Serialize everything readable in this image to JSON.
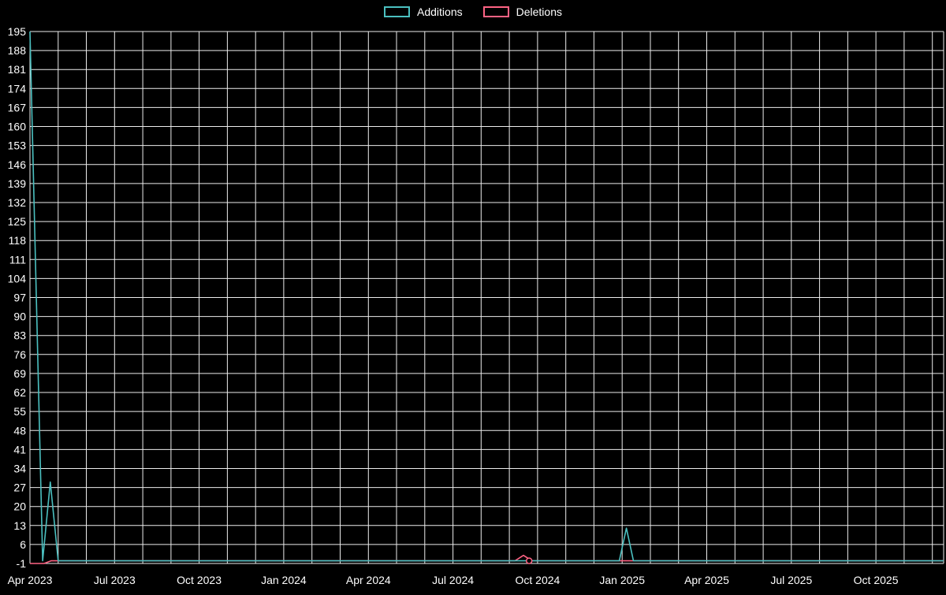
{
  "colors": {
    "background": "#000000",
    "grid": "#ededed",
    "text": "#ffffff"
  },
  "chart_data": {
    "type": "line",
    "title": "",
    "legend_position": "top-center",
    "grid": true,
    "x_axis": {
      "tick_labels": [
        "Apr 2023",
        "Jul 2023",
        "Oct 2023",
        "Jan 2024",
        "Apr 2024",
        "Jul 2024",
        "Oct 2024",
        "Jan 2025",
        "Apr 2025",
        "Jul 2025",
        "Oct 2025"
      ],
      "tick_month_offsets": [
        0,
        3,
        6,
        9,
        12,
        15,
        18,
        21,
        24,
        27,
        30
      ],
      "months_span": 32.4,
      "grid_interval_months": 1
    },
    "y_axis": {
      "min": -1,
      "max": 195,
      "step": 7,
      "tick_labels": [
        195,
        188,
        181,
        174,
        167,
        160,
        153,
        146,
        139,
        132,
        125,
        118,
        111,
        104,
        97,
        90,
        83,
        76,
        69,
        62,
        55,
        48,
        41,
        34,
        27,
        20,
        13,
        6,
        -1
      ]
    },
    "series": [
      {
        "name": "Additions",
        "color": "#4bc0c0",
        "points": [
          [
            0,
            195
          ],
          [
            0.45,
            0
          ],
          [
            0.72,
            29
          ],
          [
            1.0,
            0
          ],
          [
            20.9,
            0
          ],
          [
            21.15,
            12
          ],
          [
            21.4,
            0
          ],
          [
            32.4,
            0
          ]
        ]
      },
      {
        "name": "Deletions",
        "color": "#ff6384",
        "points": [
          [
            0,
            -1
          ],
          [
            0.5,
            -1
          ],
          [
            0.75,
            0
          ],
          [
            17.2,
            0
          ],
          [
            17.5,
            2
          ],
          [
            17.8,
            0
          ],
          [
            32.4,
            0
          ]
        ]
      }
    ],
    "markers": [
      {
        "series_index": 1,
        "x": 17.7,
        "y": 0
      }
    ]
  }
}
